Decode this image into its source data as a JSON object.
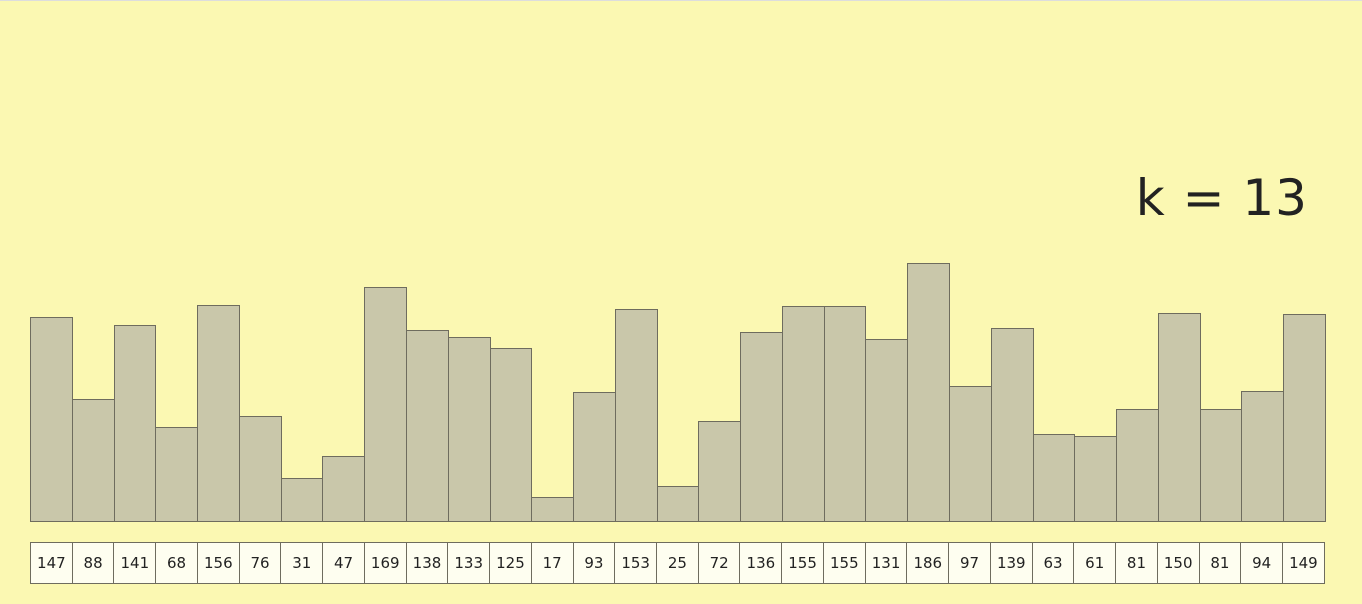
{
  "k_label": "k = 13",
  "colors": {
    "background": "#fbf8b2",
    "bar": "#c9c7aa",
    "border": "#6e6c5e"
  },
  "chart_data": {
    "type": "bar",
    "values": [
      147,
      88,
      141,
      68,
      156,
      76,
      31,
      47,
      169,
      138,
      133,
      125,
      17,
      93,
      153,
      25,
      72,
      136,
      155,
      155,
      131,
      186,
      97,
      139,
      63,
      61,
      81,
      150,
      81,
      94,
      149
    ]
  }
}
